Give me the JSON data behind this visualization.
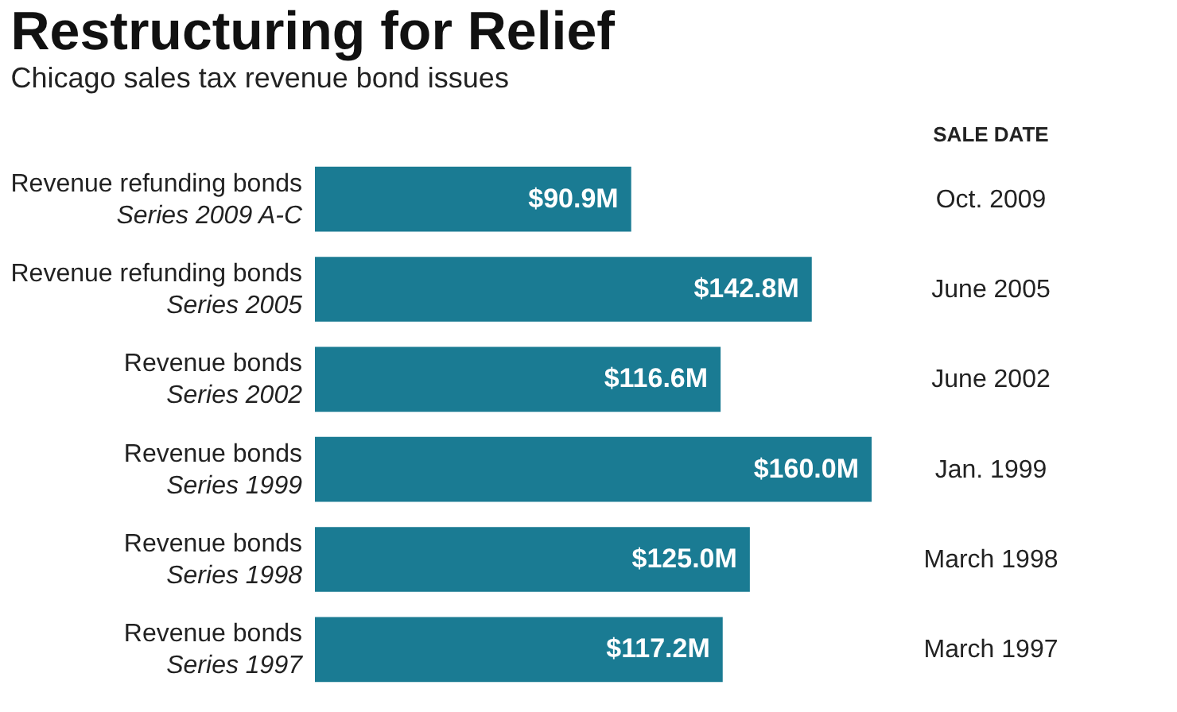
{
  "chart_data": {
    "type": "bar",
    "orientation": "horizontal",
    "title": "Restructuring for Relief",
    "subtitle": "Chicago sales tax revenue bond issues",
    "categories": [
      "Revenue refunding bonds\nSeries 2009 A-C",
      "Revenue refunding bonds\nSeries 2005",
      "Revenue bonds\nSeries 2002",
      "Revenue bonds\nSeries 1999",
      "Revenue bonds\nSeries 1998",
      "Revenue bonds\nSeries 1997"
    ],
    "values": [
      90.9,
      142.8,
      116.6,
      160.0,
      125.0,
      117.2
    ],
    "value_labels": [
      "$90.9M",
      "$142.8M",
      "$116.6M",
      "$160.0M",
      "$125.0M",
      "$117.2M"
    ],
    "color": "#1a7b93",
    "y2label": "SALE DATE",
    "y2_categories": [
      "Oct. 2009",
      "June 2005",
      "June 2002",
      "Jan. 1999",
      "March 1998",
      "March 1997"
    ]
  }
}
